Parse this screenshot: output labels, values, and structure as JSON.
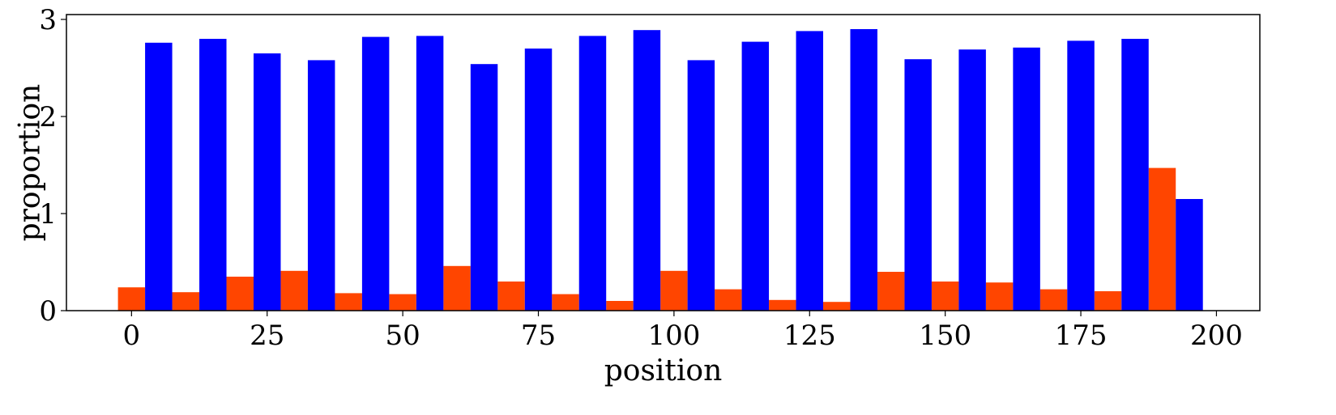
{
  "chart_data": {
    "type": "bar",
    "xlabel": "position",
    "ylabel": "proportion",
    "xlim": [
      -12,
      208
    ],
    "ylim": [
      0,
      3.05
    ],
    "xticks": [
      0,
      25,
      50,
      75,
      100,
      125,
      150,
      175,
      200
    ],
    "yticks": [
      0,
      1,
      2,
      3
    ],
    "bar_width": 5,
    "grid": false,
    "legend": "none",
    "series": [
      {
        "color": "#ff4500",
        "x": [
          0,
          10,
          20,
          30,
          40,
          50,
          60,
          70,
          80,
          90,
          100,
          110,
          120,
          130,
          140,
          150,
          160,
          170,
          180,
          190
        ],
        "values": [
          0.24,
          0.19,
          0.35,
          0.41,
          0.18,
          0.17,
          0.46,
          0.3,
          0.17,
          0.1,
          0.41,
          0.22,
          0.11,
          0.09,
          0.4,
          0.3,
          0.29,
          0.22,
          0.2,
          1.47
        ]
      },
      {
        "color": "#0000ff",
        "x": [
          5,
          15,
          25,
          35,
          45,
          55,
          65,
          75,
          85,
          95,
          105,
          115,
          125,
          135,
          145,
          155,
          165,
          175,
          185,
          195
        ],
        "values": [
          2.76,
          2.8,
          2.65,
          2.58,
          2.82,
          2.83,
          2.54,
          2.7,
          2.83,
          2.89,
          2.58,
          2.77,
          2.88,
          2.9,
          2.59,
          2.69,
          2.71,
          2.78,
          2.8,
          1.15
        ]
      }
    ]
  }
}
